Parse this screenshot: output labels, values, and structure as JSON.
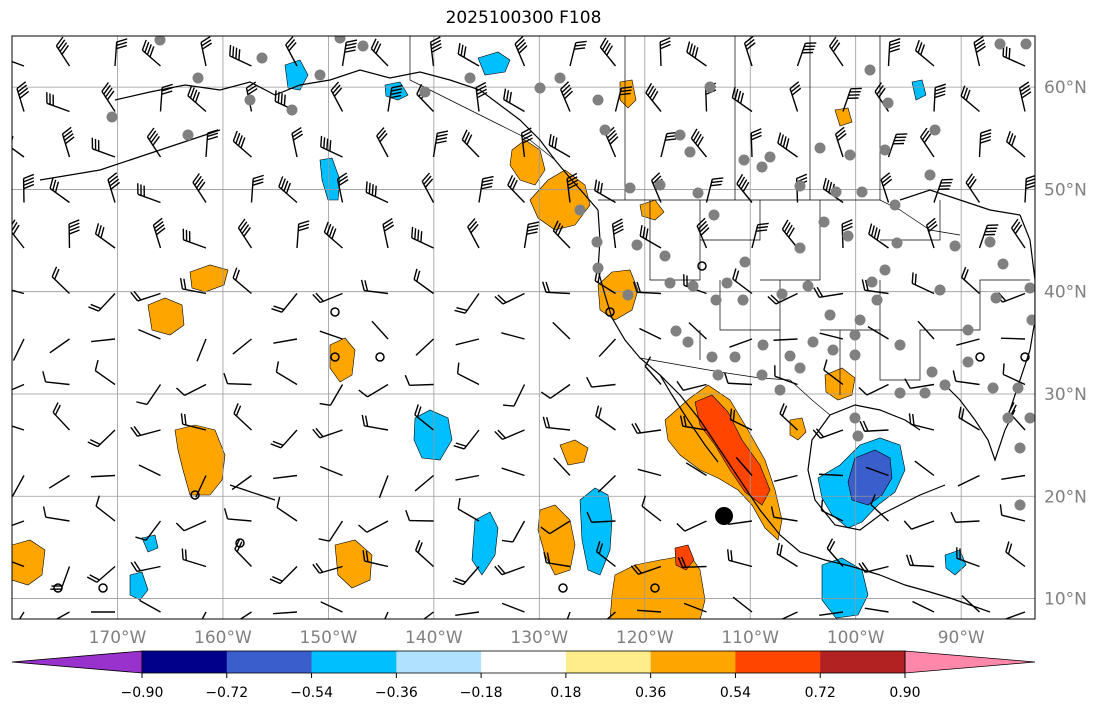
{
  "title": "2025100300 F108",
  "map": {
    "lon_range": [
      -180,
      -83
    ],
    "lat_range": [
      8,
      65
    ],
    "lon_ticks": [
      {
        "value": -170,
        "label": "170°W"
      },
      {
        "value": -160,
        "label": "160°W"
      },
      {
        "value": -150,
        "label": "150°W"
      },
      {
        "value": -140,
        "label": "140°W"
      },
      {
        "value": -130,
        "label": "130°W"
      },
      {
        "value": -120,
        "label": "120°W"
      },
      {
        "value": -110,
        "label": "110°W"
      },
      {
        "value": -100,
        "label": "100°W"
      },
      {
        "value": -90,
        "label": "90°W"
      }
    ],
    "lat_ticks": [
      {
        "value": 60,
        "label": "60°N"
      },
      {
        "value": 50,
        "label": "50°N"
      },
      {
        "value": 40,
        "label": "40°N"
      },
      {
        "value": 30,
        "label": "30°N"
      },
      {
        "value": 20,
        "label": "20°N"
      },
      {
        "value": 10,
        "label": "10°N"
      }
    ],
    "tick_label_color": "#808080"
  },
  "colorbar": {
    "colors": [
      "#9932cc",
      "#00008b",
      "#3a5fcd",
      "#00bfff",
      "#b0e2ff",
      "#ffffff",
      "#ffec8b",
      "#ffa500",
      "#ff4500",
      "#b22222",
      "#ff88aa"
    ],
    "labels": [
      "−0.90",
      "−0.72",
      "−0.54",
      "−0.36",
      "−0.18",
      "0.18",
      "0.36",
      "0.54",
      "0.72",
      "0.90"
    ]
  }
}
